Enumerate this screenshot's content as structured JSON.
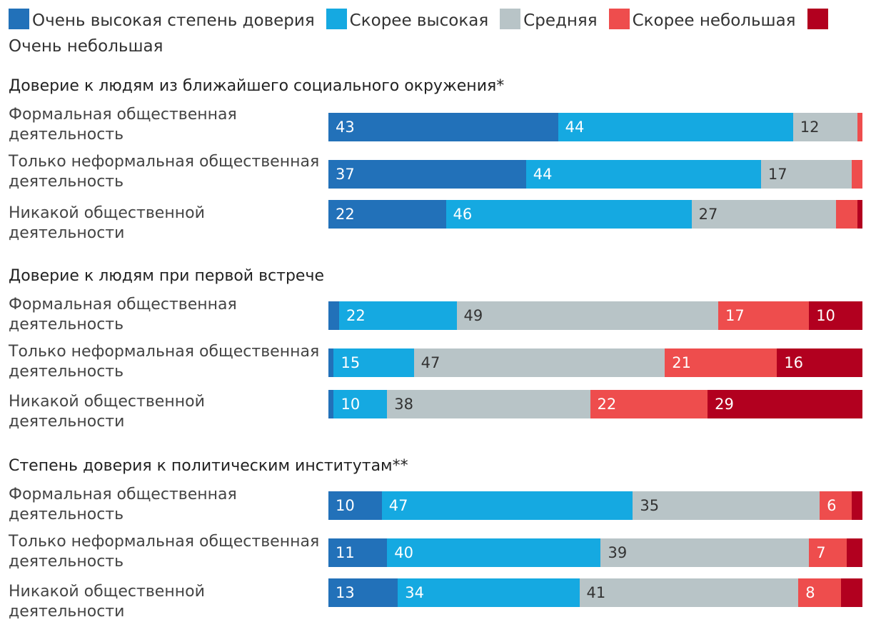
{
  "colors": {
    "very_high": "#2271b9",
    "rather_high": "#15a9e1",
    "medium": "#b8c4c7",
    "rather_low": "#ee4d4d",
    "very_low": "#b2001f"
  },
  "chart_data": {
    "type": "bar",
    "orientation": "horizontal",
    "stacked": true,
    "unit": "%",
    "legend": {
      "placement": "top",
      "items": [
        {
          "label": "Очень высокая степень доверия",
          "color_key": "very_high"
        },
        {
          "label": "Скорее высокая",
          "color_key": "rather_high"
        },
        {
          "label": "Средняя",
          "color_key": "medium"
        },
        {
          "label": "Скорее небольшая",
          "color_key": "rather_low"
        },
        {
          "label": "Очень небольшая",
          "color_key": "very_low"
        }
      ]
    },
    "segment_keys": [
      "very_high",
      "rather_high",
      "medium",
      "rather_low",
      "very_low"
    ],
    "groups": [
      {
        "title": "Доверие к людям из ближайшего социального окружения*",
        "rows": [
          {
            "label": "Формальная общественная деятельность",
            "values": [
              43,
              44,
              12,
              1,
              0
            ],
            "labels": [
              "43",
              "44",
              "12",
              "",
              ""
            ]
          },
          {
            "label": "Только неформальная общественная деятельность",
            "values": [
              37,
              44,
              17,
              2,
              0
            ],
            "labels": [
              "37",
              "44",
              "17",
              "",
              ""
            ]
          },
          {
            "label": "Никакой общественной деятельности",
            "values": [
              22,
              46,
              27,
              4,
              1
            ],
            "labels": [
              "22",
              "46",
              "27",
              "",
              ""
            ]
          }
        ]
      },
      {
        "title": "Доверие к людям при первой встрече",
        "rows": [
          {
            "label": "Формальная общественная деятельность",
            "values": [
              2,
              22,
              49,
              17,
              10
            ],
            "labels": [
              "",
              "22",
              "49",
              "17",
              "10"
            ]
          },
          {
            "label": "Только неформальная общественная деятельность",
            "values": [
              1,
              15,
              47,
              21,
              16
            ],
            "labels": [
              "",
              "15",
              "47",
              "21",
              "16"
            ]
          },
          {
            "label": "Никакой общественной деятельности",
            "values": [
              1,
              10,
              38,
              22,
              29
            ],
            "labels": [
              "",
              "10",
              "38",
              "22",
              "29"
            ]
          }
        ]
      },
      {
        "title": "Степень доверия к политическим институтам**",
        "rows": [
          {
            "label": "Формальная общественная деятельность",
            "values": [
              10,
              47,
              35,
              6,
              2
            ],
            "labels": [
              "10",
              "47",
              "35",
              "6",
              ""
            ]
          },
          {
            "label": "Только неформальная общественная деятельность",
            "values": [
              11,
              40,
              39,
              7,
              3
            ],
            "labels": [
              "11",
              "40",
              "39",
              "7",
              ""
            ]
          },
          {
            "label": "Никакой общественной деятельности",
            "values": [
              13,
              34,
              41,
              8,
              4
            ],
            "labels": [
              "13",
              "34",
              "41",
              "8",
              ""
            ]
          }
        ]
      }
    ]
  }
}
